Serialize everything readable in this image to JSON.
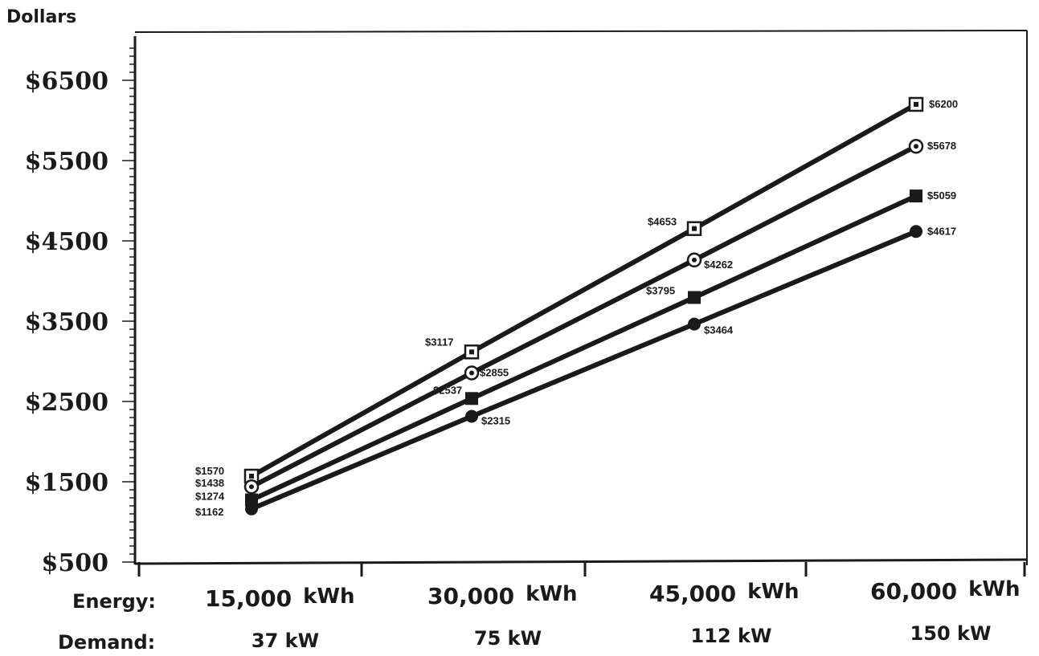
{
  "chart_data": {
    "type": "line",
    "ylabel": "Dollars",
    "ylim": [
      500,
      6900
    ],
    "yticks": [
      500,
      1500,
      2500,
      3500,
      4500,
      5500,
      6500
    ],
    "ytick_labels": [
      "$500",
      "$1500",
      "$2500",
      "$3500",
      "$4500",
      "$5500",
      "$6500"
    ],
    "x": [
      15000,
      30000,
      45000,
      60000
    ],
    "x_row_labels": {
      "energy": "Energy:",
      "demand": "Demand:"
    },
    "categories_energy": [
      {
        "num": "15,000",
        "unit": "kWh"
      },
      {
        "num": "30,000",
        "unit": "kWh"
      },
      {
        "num": "45,000",
        "unit": "kWh"
      },
      {
        "num": "60,000",
        "unit": "kWh"
      }
    ],
    "categories_demand": [
      "37 kW",
      "75 kW",
      "112 kW",
      "150 kW"
    ],
    "grid": false,
    "series": [
      {
        "marker": "open-square",
        "values": [
          1570,
          3117,
          4653,
          6200
        ],
        "labels": [
          "$1570",
          "$3117",
          "$4653",
          "$6200"
        ]
      },
      {
        "marker": "open-circle",
        "values": [
          1438,
          2855,
          4262,
          5678
        ],
        "labels": [
          "$1438",
          "$2855",
          "$4262",
          "$5678"
        ]
      },
      {
        "marker": "filled-square",
        "values": [
          1274,
          2537,
          3795,
          5059
        ],
        "labels": [
          "$1274",
          "$2537",
          "$3795",
          "$5059"
        ]
      },
      {
        "marker": "filled-circle",
        "values": [
          1162,
          2315,
          3464,
          4617
        ],
        "labels": [
          "$1162",
          "$2315",
          "$3464",
          "$4617"
        ]
      }
    ],
    "colors": {
      "ink": "#1a1a1a",
      "background": "#ffffff"
    }
  }
}
